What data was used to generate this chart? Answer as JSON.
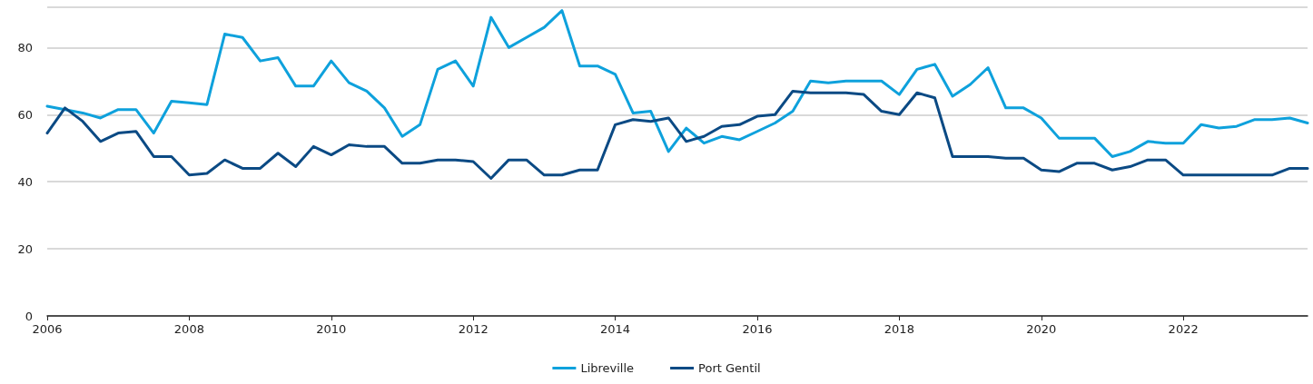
{
  "chart_data": {
    "type": "line",
    "x": [
      2006,
      2006.25,
      2006.5,
      2006.75,
      2007,
      2007.25,
      2007.5,
      2007.75,
      2008,
      2008.25,
      2008.5,
      2008.75,
      2009,
      2009.25,
      2009.5,
      2009.75,
      2010,
      2010.25,
      2010.5,
      2010.75,
      2011,
      2011.25,
      2011.5,
      2011.75,
      2012,
      2012.25,
      2012.5,
      2012.75,
      2013,
      2013.25,
      2013.5,
      2013.75,
      2014,
      2014.25,
      2014.5,
      2014.75,
      2015,
      2015.25,
      2015.5,
      2015.75,
      2016,
      2016.25,
      2016.5,
      2016.75,
      2017,
      2017.25,
      2017.5,
      2017.75,
      2018,
      2018.25,
      2018.5,
      2018.75,
      2019,
      2019.25,
      2019.5,
      2019.75,
      2020,
      2020.25,
      2020.5,
      2020.75,
      2021,
      2021.25,
      2021.5,
      2021.75,
      2022,
      2022.25,
      2022.5,
      2022.75,
      2023,
      2023.25,
      2023.5,
      2023.75
    ],
    "series": [
      {
        "name": "Libreville",
        "color": "#0ea1dc",
        "values": [
          62.5,
          61.5,
          60.5,
          59,
          61.5,
          61.5,
          54.5,
          64,
          63.5,
          63,
          84,
          83,
          76,
          77,
          68.5,
          68.5,
          76,
          69.5,
          67,
          62,
          53.5,
          57,
          73.5,
          76,
          68.5,
          89,
          80,
          83,
          86,
          91,
          74.5,
          74.5,
          72,
          60.5,
          61,
          49,
          56,
          51.5,
          53.5,
          52.5,
          55,
          57.5,
          61,
          70,
          69.5,
          70,
          70,
          70,
          66,
          73.5,
          75,
          65.5,
          69,
          74,
          62,
          62,
          59,
          53,
          53,
          53,
          47.5,
          49,
          52,
          51.5,
          51.5,
          57,
          56,
          56.5,
          58.5,
          58.5,
          59,
          57.5
        ]
      },
      {
        "name": "Port Gentil",
        "color": "#0b4a84",
        "values": [
          54.5,
          62,
          58,
          52,
          54.5,
          55,
          47.5,
          47.5,
          42,
          42.5,
          46.5,
          44,
          44,
          48.5,
          44.5,
          50.5,
          48,
          51,
          50.5,
          50.5,
          45.5,
          45.5,
          46.5,
          46.5,
          46,
          41,
          46.5,
          46.5,
          42,
          42,
          43.5,
          43.5,
          57,
          58.5,
          58,
          59,
          52,
          53.5,
          56.5,
          57,
          59.5,
          60,
          67,
          66.5,
          66.5,
          66.5,
          66,
          61,
          60,
          66.5,
          65,
          47.5,
          47.5,
          47.5,
          47,
          47,
          43.5,
          43,
          45.5,
          45.5,
          43.5,
          44.5,
          46.5,
          46.5,
          42,
          42,
          42,
          42,
          42,
          42,
          44,
          44
        ]
      }
    ],
    "xlim": [
      2006,
      2023.75
    ],
    "xticks": [
      2006,
      2008,
      2010,
      2012,
      2014,
      2016,
      2018,
      2020,
      2022
    ],
    "ylim": [
      0,
      92
    ],
    "yticks": [
      0,
      20,
      40,
      60,
      80
    ],
    "grid": "y",
    "legend": "bottom",
    "marker": "none",
    "line_style": "solid"
  }
}
